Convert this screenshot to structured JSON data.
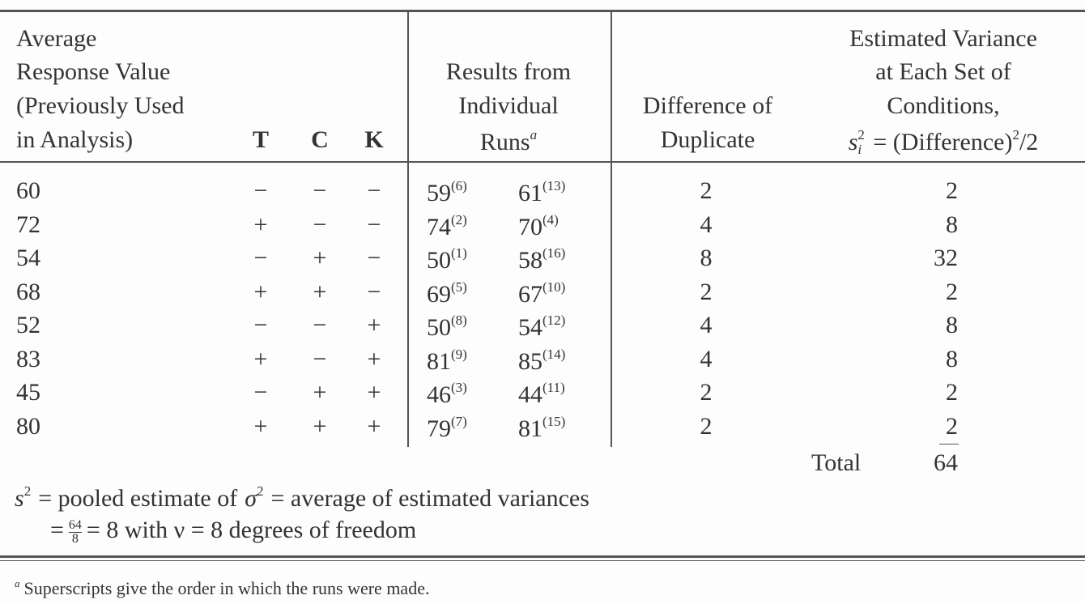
{
  "header": {
    "average_response": [
      "Average",
      "Response Value",
      "(Previously Used",
      "in Analysis)"
    ],
    "factors": [
      "T",
      "C",
      "K"
    ],
    "results": {
      "lines": [
        "Results from",
        "Individual",
        "Runs"
      ],
      "note_mark": "a"
    },
    "difference": [
      "Difference of",
      "Duplicate"
    ],
    "variance": {
      "lines": [
        "Estimated Variance",
        "at Each Set of",
        "Conditions,"
      ],
      "formula": {
        "symbol": "s",
        "subscript": "i",
        "superscript": "2",
        "rest": "= (Difference)",
        "power": "2",
        "divisor": "/2"
      }
    }
  },
  "rows": [
    {
      "average": 60,
      "T": "−",
      "C": "−",
      "K": "−",
      "run_1": {
        "value": 59,
        "order": "(6)"
      },
      "run_2": {
        "value": 61,
        "order": "(13)"
      },
      "difference": 2,
      "variance": 2
    },
    {
      "average": 72,
      "T": "+",
      "C": "−",
      "K": "−",
      "run_1": {
        "value": 74,
        "order": "(2)"
      },
      "run_2": {
        "value": 70,
        "order": "(4)"
      },
      "difference": 4,
      "variance": 8
    },
    {
      "average": 54,
      "T": "−",
      "C": "+",
      "K": "−",
      "run_1": {
        "value": 50,
        "order": "(1)"
      },
      "run_2": {
        "value": 58,
        "order": "(16)"
      },
      "difference": 8,
      "variance": 32
    },
    {
      "average": 68,
      "T": "+",
      "C": "+",
      "K": "−",
      "run_1": {
        "value": 69,
        "order": "(5)"
      },
      "run_2": {
        "value": 67,
        "order": "(10)"
      },
      "difference": 2,
      "variance": 2
    },
    {
      "average": 52,
      "T": "−",
      "C": "−",
      "K": "+",
      "run_1": {
        "value": 50,
        "order": "(8)"
      },
      "run_2": {
        "value": 54,
        "order": "(12)"
      },
      "difference": 4,
      "variance": 8
    },
    {
      "average": 83,
      "T": "+",
      "C": "−",
      "K": "+",
      "run_1": {
        "value": 81,
        "order": "(9)"
      },
      "run_2": {
        "value": 85,
        "order": "(14)"
      },
      "difference": 4,
      "variance": 8
    },
    {
      "average": 45,
      "T": "−",
      "C": "+",
      "K": "+",
      "run_1": {
        "value": 46,
        "order": "(3)"
      },
      "run_2": {
        "value": 44,
        "order": "(11)"
      },
      "difference": 2,
      "variance": 2
    },
    {
      "average": 80,
      "T": "+",
      "C": "+",
      "K": "+",
      "run_1": {
        "value": 79,
        "order": "(7)"
      },
      "run_2": {
        "value": 81,
        "order": "(15)"
      },
      "difference": 2,
      "variance": 2
    }
  ],
  "total": {
    "label": "Total",
    "value": 64
  },
  "pooled": {
    "line_1": {
      "s": "s",
      "s_power": "2",
      "text_1": "= pooled estimate of",
      "sigma": "σ",
      "sigma_power": "2",
      "text_2": "= average of estimated variances"
    },
    "line_2": {
      "equals": "=",
      "numerator": "64",
      "denominator": "8",
      "text": "= 8 with ν = 8 degrees of freedom"
    }
  },
  "footnote": {
    "mark": "a",
    "text": "Superscripts give the order in which the runs were made."
  }
}
